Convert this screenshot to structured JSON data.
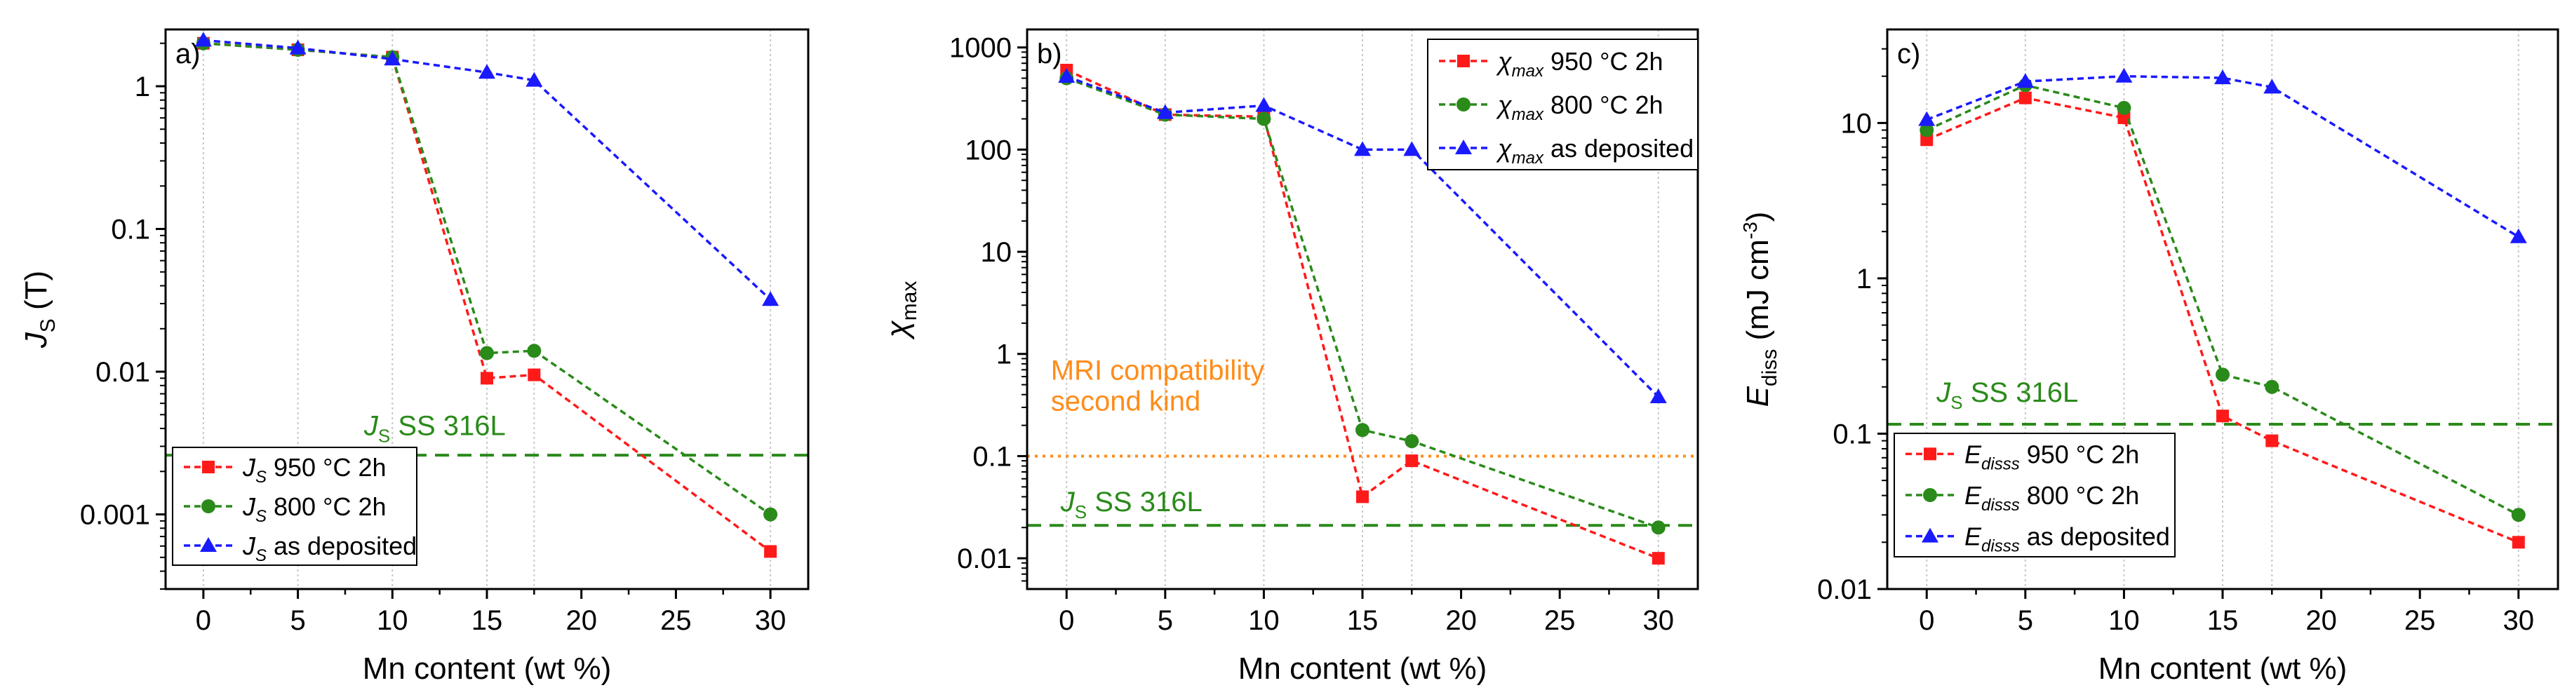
{
  "colors": {
    "red": "#ff1a1a",
    "green": "#2a8a1a",
    "blue": "#1a1aff",
    "orange": "#ff8c1a",
    "text": "#000000",
    "grid": "#c8c8c8"
  },
  "chart_data": [
    {
      "panel": "a",
      "type": "line",
      "panel_label": "a)",
      "xlabel": "Mn content (wt %)",
      "ylabel": "J",
      "ylabel_sub": "S",
      "ylabel_unit": " (T)",
      "yscale": "log",
      "ylim": [
        0.0003,
        2.5
      ],
      "xlim": [
        -2,
        32
      ],
      "x_ticks": [
        0,
        5,
        10,
        15,
        20,
        25,
        30
      ],
      "x_tick_labels": [
        "0",
        "5",
        "10",
        "15",
        "20",
        "25",
        "30"
      ],
      "y_ticks": [
        0.001,
        0.01,
        0.1,
        1
      ],
      "y_tick_labels": [
        "0.001",
        "0.01",
        "0.1",
        "1"
      ],
      "vgrid": [
        0,
        5,
        10,
        15,
        17.5,
        30
      ],
      "series": [
        {
          "sym": "J",
          "sub": "S",
          "name": " 950 °C 2h",
          "color": "red",
          "marker": "square",
          "x": [
            0,
            5,
            10,
            15,
            17.5,
            30
          ],
          "values": [
            2.0,
            1.8,
            1.6,
            0.009,
            0.0095,
            0.00055
          ]
        },
        {
          "sym": "J",
          "sub": "S",
          "name": " 800 °C 2h",
          "color": "green",
          "marker": "circle",
          "x": [
            0,
            5,
            10,
            15,
            17.5,
            30
          ],
          "values": [
            2.0,
            1.8,
            1.6,
            0.0135,
            0.014,
            0.001
          ]
        },
        {
          "sym": "J",
          "sub": "S",
          "name": " as deposited",
          "color": "blue",
          "marker": "triangle",
          "x": [
            0,
            5,
            10,
            15,
            17.5,
            30
          ],
          "values": [
            2.1,
            1.85,
            1.55,
            1.25,
            1.1,
            0.032
          ]
        }
      ],
      "reference_lines": [
        {
          "value": 0.0026,
          "color": "green",
          "style": "dash",
          "sym": "J",
          "sub": "S",
          "text": " SS 316L",
          "label_x": 8.5,
          "label_value": 0.0036,
          "label_color": "green",
          "label_lines": []
        }
      ],
      "legend_position": "bottom-left"
    },
    {
      "panel": "b",
      "type": "line",
      "panel_label": "b)",
      "xlabel": "Mn content (wt %)",
      "ylabel": "χ",
      "ylabel_sub": "max",
      "ylabel_unit": "",
      "yscale": "log",
      "ylim": [
        0.005,
        1500
      ],
      "xlim": [
        -2,
        32
      ],
      "x_ticks": [
        0,
        5,
        10,
        15,
        20,
        25,
        30
      ],
      "x_tick_labels": [
        "0",
        "5",
        "10",
        "15",
        "20",
        "25",
        "30"
      ],
      "y_ticks": [
        0.01,
        0.1,
        1,
        10,
        100,
        1000
      ],
      "y_tick_labels": [
        "0.01",
        "0.1",
        "1",
        "10",
        "100",
        "1000"
      ],
      "vgrid": [
        0,
        5,
        10,
        15,
        17.5,
        30
      ],
      "series": [
        {
          "sym": "χ",
          "sub": "max",
          "name": " 950 °C 2h",
          "color": "red",
          "marker": "square",
          "x": [
            0,
            5,
            10,
            15,
            17.5,
            30
          ],
          "values": [
            600,
            220,
            210,
            0.04,
            0.09,
            0.01
          ]
        },
        {
          "sym": "χ",
          "sub": "max",
          "name": " 800 °C 2h",
          "color": "green",
          "marker": "circle",
          "x": [
            0,
            5,
            10,
            15,
            17.5,
            30
          ],
          "values": [
            500,
            220,
            200,
            0.18,
            0.14,
            0.02
          ]
        },
        {
          "sym": "χ",
          "sub": "max",
          "name": " as deposited",
          "color": "blue",
          "marker": "triangle",
          "x": [
            0,
            5,
            10,
            15,
            17.5,
            30
          ],
          "values": [
            520,
            230,
            270,
            100,
            100,
            0.38
          ]
        }
      ],
      "reference_lines": [
        {
          "value": 0.1,
          "color": "orange",
          "style": "dot",
          "sym": "",
          "sub": "",
          "text": "",
          "label_x": -0.8,
          "label_value": 0.28,
          "label_color": "orange",
          "label_lines": [
            "MRI compatibility",
            "second kind"
          ]
        },
        {
          "value": 0.021,
          "color": "green",
          "style": "dash",
          "sym": "J",
          "sub": "S",
          "text": " SS 316L",
          "label_x": -0.3,
          "label_value": 0.029,
          "label_color": "green",
          "label_lines": []
        }
      ],
      "legend_position": "top-right"
    },
    {
      "panel": "c",
      "type": "line",
      "panel_label": "c)",
      "xlabel": "Mn content (wt %)",
      "ylabel": "E",
      "ylabel_sub": "diss",
      "ylabel_unit": " (mJ cm",
      "ylabel_sup": "-3",
      "ylabel_tail": ")",
      "yscale": "log",
      "ylim": [
        0.01,
        40
      ],
      "xlim": [
        -2,
        32
      ],
      "x_ticks": [
        0,
        5,
        10,
        15,
        20,
        25,
        30
      ],
      "x_tick_labels": [
        "0",
        "5",
        "10",
        "15",
        "20",
        "25",
        "30"
      ],
      "y_ticks": [
        0.01,
        0.1,
        1,
        10
      ],
      "y_tick_labels": [
        "0.01",
        "0.1",
        "1",
        "10"
      ],
      "vgrid": [
        0,
        5,
        10,
        15,
        17.5,
        30
      ],
      "series": [
        {
          "sym": "E",
          "sub": "disss",
          "name": " 950 °C 2h",
          "color": "red",
          "marker": "square",
          "x": [
            0,
            5,
            10,
            15,
            17.5,
            30
          ],
          "values": [
            7.8,
            14.5,
            10.8,
            0.13,
            0.09,
            0.02
          ]
        },
        {
          "sym": "E",
          "sub": "disss",
          "name": " 800 °C 2h",
          "color": "green",
          "marker": "circle",
          "x": [
            0,
            5,
            10,
            15,
            17.5,
            30
          ],
          "values": [
            9.0,
            17.5,
            12.5,
            0.24,
            0.2,
            0.03
          ]
        },
        {
          "sym": "E",
          "sub": "disss",
          "name": " as deposited",
          "color": "blue",
          "marker": "triangle",
          "x": [
            0,
            5,
            10,
            15,
            17.5,
            30
          ],
          "values": [
            10.5,
            18.5,
            20,
            19.5,
            17,
            1.85
          ]
        }
      ],
      "reference_lines": [
        {
          "value": 0.115,
          "color": "green",
          "style": "dash",
          "sym": "J",
          "sub": "S",
          "text": " SS 316L",
          "label_x": 0.5,
          "label_value": 0.16,
          "label_color": "green",
          "label_lines": []
        }
      ],
      "legend_position": "bottom-left"
    }
  ]
}
